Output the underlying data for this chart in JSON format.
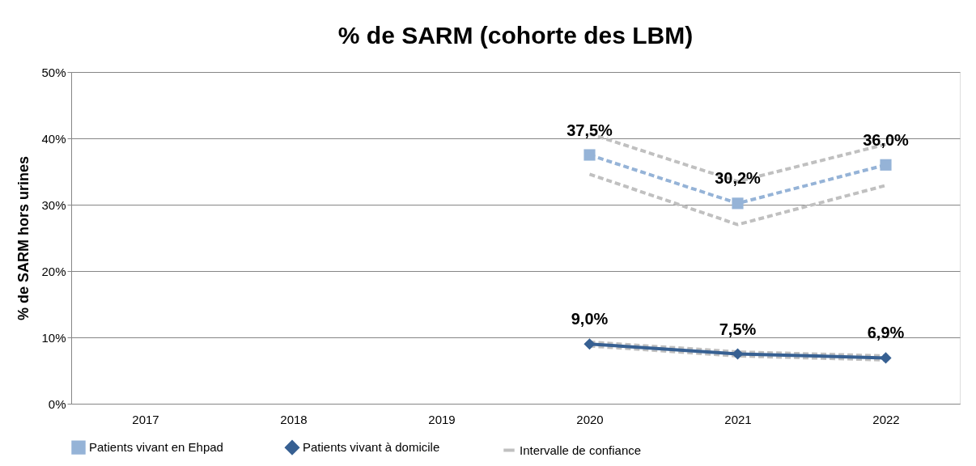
{
  "chart_data": {
    "type": "line",
    "title": "% de SARM (cohorte des LBM)",
    "ylabel": "% de SARM hors urines",
    "categories": [
      "2017",
      "2018",
      "2019",
      "2020",
      "2021",
      "2022"
    ],
    "series": [
      {
        "name": "Patients vivant en Ehpad",
        "color": "#95b3d7",
        "marker": "square",
        "line_style": "dashed",
        "values": [
          null,
          null,
          null,
          37.5,
          30.2,
          36.0
        ],
        "value_labels": [
          null,
          null,
          null,
          "37,5%",
          "30,2%",
          "36,0%"
        ]
      },
      {
        "name": "Patients vivant à domicile",
        "color": "#376092",
        "marker": "diamond",
        "line_style": "solid",
        "values": [
          null,
          null,
          null,
          9.0,
          7.5,
          6.9
        ],
        "value_labels": [
          null,
          null,
          null,
          "9,0%",
          "7,5%",
          "6,9%"
        ]
      },
      {
        "name": "Intervalle de confiance",
        "color": "#c0c0c0",
        "marker": "none",
        "line_style": "dashed",
        "values": [
          null,
          null,
          null,
          40.7,
          33.5,
          39.1
        ]
      },
      {
        "color": "#c0c0c0",
        "marker": "none",
        "line_style": "dashed",
        "values": [
          null,
          null,
          null,
          34.6,
          27.0,
          32.9
        ]
      },
      {
        "color": "#c0c0c0",
        "marker": "none",
        "line_style": "dashed",
        "values": [
          null,
          null,
          null,
          9.3,
          7.8,
          7.2
        ]
      },
      {
        "color": "#c0c0c0",
        "marker": "none",
        "line_style": "dashed",
        "values": [
          null,
          null,
          null,
          8.7,
          7.2,
          6.6
        ]
      }
    ],
    "ylim": [
      0,
      50
    ],
    "yticks": [
      {
        "value": 0,
        "label": "0%"
      },
      {
        "value": 10,
        "label": "10%"
      },
      {
        "value": 20,
        "label": "20%"
      },
      {
        "value": 30,
        "label": "30%"
      },
      {
        "value": 40,
        "label": "40%"
      },
      {
        "value": 50,
        "label": "50%"
      }
    ],
    "grid": "y",
    "legend": "bottom"
  }
}
